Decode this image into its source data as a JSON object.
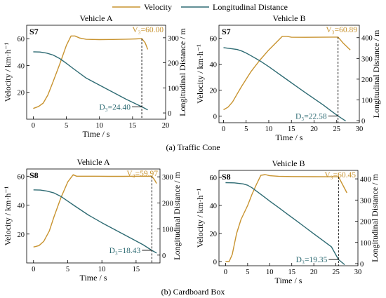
{
  "figure": {
    "legend": [
      {
        "label": "Velocity",
        "color": "#C8932F"
      },
      {
        "label": "Longitudinal Distance",
        "color": "#2E6B73"
      }
    ],
    "captions": [
      "(a) Traffic Cone",
      "(b) Cardboard Box"
    ]
  },
  "colors": {
    "velocity": "#C8932F",
    "distance": "#2E6B73",
    "axis": "#000000",
    "marker": "#000000"
  },
  "chart_data": [
    {
      "type": "line",
      "scenario": "S7",
      "title": "Vehicle A",
      "xlabel": "Time / s",
      "ylabel": "Velocity / km·h⁻¹",
      "y2label": "Longitudinal Distance / m",
      "xlim": [
        -1,
        20
      ],
      "ylim": [
        0,
        70
      ],
      "y2lim": [
        -25,
        350
      ],
      "xticks": [
        0,
        5,
        10,
        15,
        20
      ],
      "yticks": [
        20,
        40,
        60
      ],
      "y2ticks": [
        0,
        100,
        200,
        300
      ],
      "event_time": 16.4,
      "annotations": {
        "v3": "V₃=60.00",
        "d3": "D₃=24.40"
      },
      "series": [
        {
          "name": "Velocity",
          "axis": "left",
          "x": [
            0,
            0.8,
            1.5,
            2.2,
            3,
            4,
            5,
            5.7,
            6.3,
            7,
            8,
            10,
            12,
            14,
            15.5,
            16.4,
            16.9,
            17.3
          ],
          "y": [
            8,
            9.5,
            12,
            18,
            28,
            41,
            55,
            62,
            62,
            60.5,
            59.5,
            59.3,
            59.4,
            59.6,
            59.8,
            60.0,
            57,
            52
          ]
        },
        {
          "name": "Longitudinal Distance",
          "axis": "right",
          "x": [
            0,
            1,
            2,
            3,
            4,
            5,
            6,
            8,
            10,
            12,
            14,
            16.4,
            17.3
          ],
          "y": [
            244,
            243,
            239,
            231,
            217,
            198,
            178,
            139,
            111,
            83,
            55,
            24.4,
            12
          ]
        }
      ]
    },
    {
      "type": "line",
      "scenario": "S7",
      "title": "Vehicle B",
      "xlabel": "Time / s",
      "ylabel": "Velocity / km·h⁻¹",
      "y2label": "Longitudinal Distance / m",
      "xlim": [
        -1,
        30
      ],
      "ylim": [
        -5,
        70
      ],
      "y2lim": [
        -10,
        460
      ],
      "xticks": [
        0,
        5,
        10,
        15,
        20,
        25,
        30
      ],
      "yticks": [
        0,
        20,
        40,
        60
      ],
      "y2ticks": [
        0,
        100,
        200,
        300,
        400
      ],
      "event_time": 25.3,
      "annotations": {
        "v3": "V₃=60.89",
        "d3": "D₃=22.58"
      },
      "series": [
        {
          "name": "Velocity",
          "axis": "left",
          "x": [
            0,
            1,
            2,
            3,
            4,
            6,
            8,
            10,
            12,
            13,
            14,
            15,
            18,
            21,
            24,
            25.3,
            26.5,
            28
          ],
          "y": [
            5,
            7,
            11,
            17,
            23,
            34,
            43,
            51,
            58,
            61.5,
            61.5,
            60.8,
            60.7,
            60.8,
            60.9,
            60.89,
            56,
            51
          ]
        },
        {
          "name": "Longitudinal Distance",
          "axis": "right",
          "x": [
            0,
            1,
            2,
            3,
            4,
            5,
            6,
            8,
            10,
            12,
            14,
            16,
            18,
            20,
            22,
            24,
            25.3,
            27
          ],
          "y": [
            352,
            349,
            346,
            343,
            336,
            326,
            314,
            289,
            260,
            229,
            198,
            167,
            136,
            106,
            76,
            43,
            22.58,
            -2
          ]
        }
      ]
    },
    {
      "type": "line",
      "scenario": "S8",
      "title": "Vehicle A",
      "xlabel": "Time / s",
      "ylabel": "Velocity / km·h⁻¹",
      "y2label": "Longitudinal Distance / m",
      "xlim": [
        -1,
        18.5
      ],
      "ylim": [
        0,
        65
      ],
      "y2lim": [
        -30,
        330
      ],
      "xticks": [
        0,
        5,
        10,
        15
      ],
      "yticks": [
        20,
        40,
        60
      ],
      "y2ticks": [
        0,
        100,
        200,
        300
      ],
      "event_time": 17.3,
      "annotations": {
        "v3": "V₃=59.97",
        "d3": "D₃=18.43"
      },
      "series": [
        {
          "name": "Velocity",
          "axis": "left",
          "x": [
            0,
            0.8,
            1.5,
            2.3,
            3,
            4,
            5,
            5.8,
            6.3,
            7,
            9,
            11,
            13,
            15,
            17.3,
            17.7,
            18
          ],
          "y": [
            11,
            12,
            15,
            22,
            32,
            45,
            56,
            61,
            60,
            60,
            60,
            59.9,
            59.9,
            60,
            59.97,
            57.5,
            55
          ]
        },
        {
          "name": "Longitudinal Distance",
          "axis": "right",
          "x": [
            0,
            1,
            2,
            3,
            4,
            5,
            6,
            8,
            10,
            12,
            14,
            16,
            17.3,
            18
          ],
          "y": [
            250,
            249,
            245,
            238,
            225,
            207,
            189,
            154,
            124,
            96,
            68,
            40,
            18.43,
            8
          ]
        }
      ]
    },
    {
      "type": "line",
      "scenario": "S8",
      "title": "Vehicle B",
      "xlabel": "Time / s",
      "ylabel": "Velocity / km·h⁻¹",
      "y2label": "Longitudinal Distance / m",
      "xlim": [
        -1.5,
        30
      ],
      "ylim": [
        -3,
        65
      ],
      "y2lim": [
        -10,
        440
      ],
      "xticks": [
        0,
        5,
        10,
        15,
        20,
        25,
        30
      ],
      "yticks": [
        0,
        20,
        40,
        60
      ],
      "y2ticks": [
        0,
        100,
        200,
        300,
        400
      ],
      "event_time": 25.6,
      "annotations": {
        "v3": "V₃=60.45",
        "d3": "D₃=19.35"
      },
      "series": [
        {
          "name": "Velocity",
          "axis": "left",
          "x": [
            0,
            0.8,
            1.5,
            2.5,
            3.5,
            5,
            6,
            7,
            8,
            9,
            10,
            12,
            15,
            20,
            25.6,
            26.5,
            27.5
          ],
          "y": [
            0,
            0,
            5,
            20,
            30,
            40,
            48,
            55,
            61.5,
            62,
            61.2,
            60.8,
            60.6,
            60.5,
            60.45,
            55,
            49
          ]
        },
        {
          "name": "Longitudinal Distance",
          "axis": "right",
          "x": [
            0,
            2,
            4,
            5,
            6,
            8,
            10,
            12,
            14,
            16,
            18,
            20,
            22,
            24,
            25.6,
            27
          ],
          "y": [
            382,
            381,
            376,
            370,
            358,
            327,
            295,
            265,
            234,
            203,
            172,
            141,
            110,
            79,
            19.35,
            -5
          ]
        }
      ]
    }
  ]
}
